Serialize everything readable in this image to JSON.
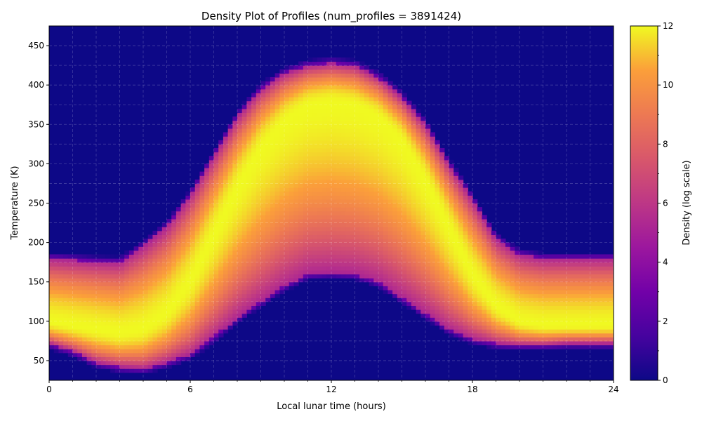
{
  "chart_data": {
    "type": "heatmap",
    "title": "Density Plot of Profiles (num_profiles = 3891424)",
    "xlabel": "Local lunar time (hours)",
    "ylabel": "Temperature (K)",
    "xlim": [
      0,
      24
    ],
    "ylim": [
      25,
      475
    ],
    "x_ticks": [
      0,
      6,
      12,
      18,
      24
    ],
    "x_tick_labels": [
      "0",
      "6",
      "12",
      "18",
      "24"
    ],
    "y_ticks": [
      50,
      100,
      150,
      200,
      250,
      300,
      350,
      400,
      450
    ],
    "y_tick_labels": [
      "50",
      "100",
      "150",
      "200",
      "250",
      "300",
      "350",
      "400",
      "450"
    ],
    "grid": true,
    "colormap": "plasma",
    "colorbar": {
      "label": "Density (log scale)",
      "range": [
        0,
        12
      ],
      "ticks": [
        0,
        2,
        4,
        6,
        8,
        10,
        12
      ],
      "tick_labels": [
        "0",
        "2",
        "4",
        "6",
        "8",
        "10",
        "12"
      ]
    },
    "band_profile": {
      "x_hours": [
        0,
        1,
        2,
        3,
        4,
        5,
        6,
        7,
        8,
        9,
        10,
        11,
        12,
        13,
        14,
        15,
        16,
        17,
        18,
        19,
        20,
        21,
        22,
        23,
        24
      ],
      "lower_edge_K": [
        72,
        62,
        48,
        42,
        40,
        48,
        58,
        80,
        105,
        125,
        145,
        160,
        162,
        160,
        150,
        130,
        110,
        90,
        78,
        72,
        70,
        70,
        72,
        72,
        72
      ],
      "upper_edge_K": [
        180,
        178,
        176,
        175,
        195,
        220,
        260,
        310,
        360,
        395,
        415,
        425,
        428,
        425,
        410,
        385,
        350,
        300,
        255,
        205,
        185,
        180,
        180,
        180,
        180
      ],
      "peak_K": [
        100,
        95,
        90,
        85,
        90,
        110,
        150,
        210,
        270,
        320,
        355,
        375,
        380,
        375,
        360,
        330,
        280,
        220,
        160,
        120,
        100,
        95,
        95,
        95,
        95
      ]
    }
  }
}
